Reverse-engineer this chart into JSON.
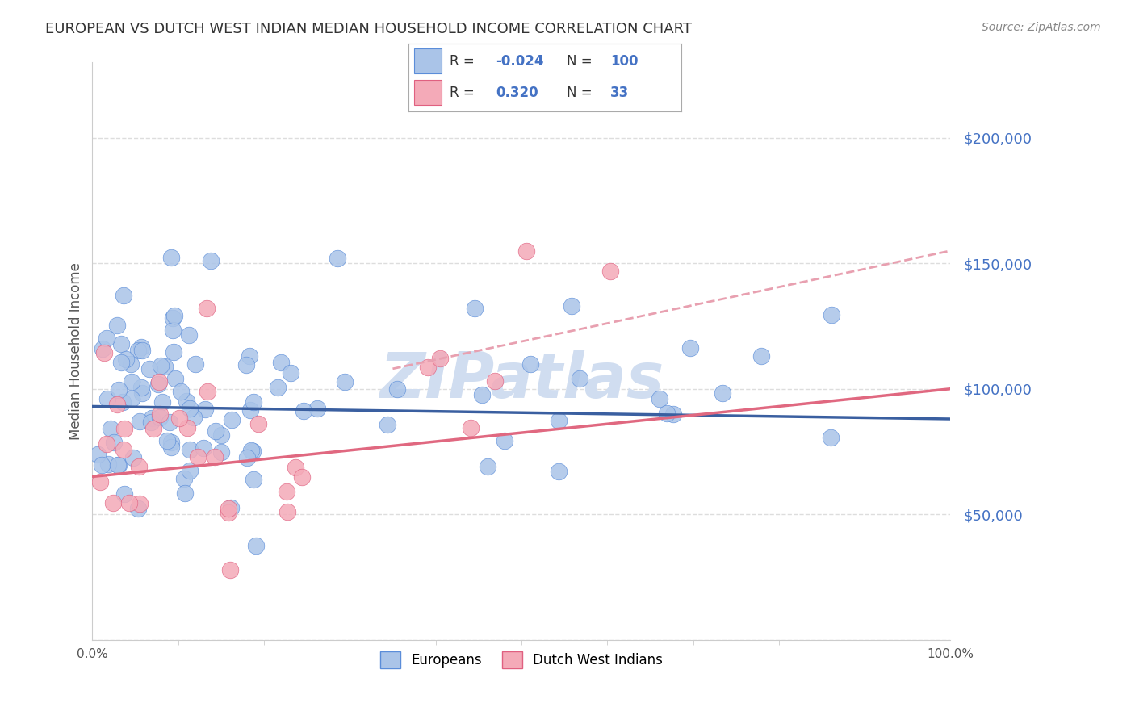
{
  "title": "EUROPEAN VS DUTCH WEST INDIAN MEDIAN HOUSEHOLD INCOME CORRELATION CHART",
  "source": "Source: ZipAtlas.com",
  "ylabel": "Median Household Income",
  "watermark": "ZIPatlas",
  "legend_entries": [
    {
      "label": "Europeans",
      "color": "#aac4e8",
      "edge_color": "#5b8dd9",
      "R": -0.024,
      "N": 100
    },
    {
      "label": "Dutch West Indians",
      "color": "#f4aab8",
      "edge_color": "#e06080",
      "R": 0.32,
      "N": 33
    }
  ],
  "blue_line_color": "#3a5fa0",
  "pink_line_color": "#e06880",
  "dashed_line_color": "#e8a0b0",
  "axis_color": "#cccccc",
  "grid_color": "#dddddd",
  "ylim": [
    0,
    230000
  ],
  "xlim": [
    0.0,
    1.0
  ],
  "yticks": [
    0,
    50000,
    100000,
    150000,
    200000
  ],
  "background_color": "#ffffff",
  "title_color": "#333333",
  "title_fontsize": 13,
  "label_color": "#555555",
  "tick_color": "#4472c4",
  "watermark_color": "#d0ddf0",
  "blue_line_y0": 93000,
  "blue_line_y1": 88000,
  "pink_line_y0": 65000,
  "pink_line_y1": 100000,
  "dashed_line_x0": 0.35,
  "dashed_line_y0": 108000,
  "dashed_line_x1": 1.0,
  "dashed_line_y1": 155000
}
